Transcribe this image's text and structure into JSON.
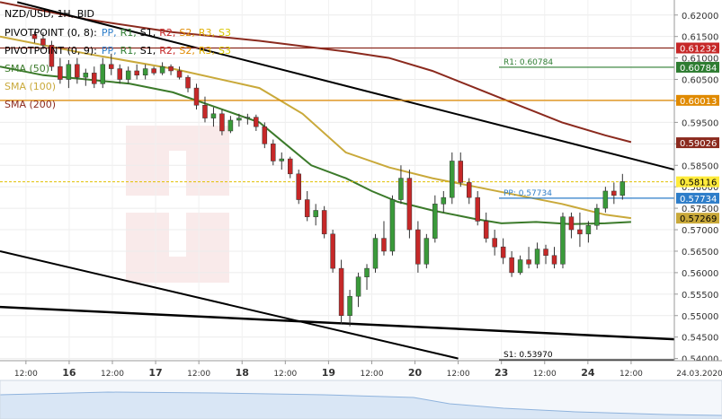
{
  "chart_data": {
    "type": "candlestick",
    "symbol_title": "NZD/USD, 1H, BID",
    "legend": [
      {
        "name": "PIVOTPOINT (0, 8):",
        "items": [
          {
            "t": "PP,",
            "c": "#2d7dc9"
          },
          {
            "t": "R1,",
            "c": "#2e7d32"
          },
          {
            "t": "S1,",
            "c": "#000000"
          },
          {
            "t": "R2,",
            "c": "#c62828"
          },
          {
            "t": "S2,",
            "c": "#e08a00"
          },
          {
            "t": "R3,",
            "c": "#e0b000"
          },
          {
            "t": "S3",
            "c": "#d8c800"
          }
        ]
      },
      {
        "name": "PIVOTPOINT (0, 9):",
        "items": [
          {
            "t": "PP,",
            "c": "#2d7dc9"
          },
          {
            "t": "R1,",
            "c": "#2e7d32"
          },
          {
            "t": "S1,",
            "c": "#000000"
          },
          {
            "t": "R2,",
            "c": "#c62828"
          },
          {
            "t": "S2,",
            "c": "#e08a00"
          },
          {
            "t": "R3,",
            "c": "#e0b000"
          },
          {
            "t": "S3",
            "c": "#d8c800"
          }
        ]
      },
      {
        "name": "SMA (50)",
        "color": "#3b7a2a"
      },
      {
        "name": "SMA (100)",
        "color": "#c9a93a"
      },
      {
        "name": "SMA (200)",
        "color": "#8b2a1e"
      }
    ],
    "y_ticks": [
      "0.62000",
      "0.61500",
      "0.61000",
      "0.60500",
      "0.60000",
      "0.59500",
      "0.59000",
      "0.58500",
      "0.58000",
      "0.57500",
      "0.57000",
      "0.56500",
      "0.56000",
      "0.55500",
      "0.55000",
      "0.54500",
      "0.54000"
    ],
    "ylim": [
      0.5395,
      0.6235
    ],
    "x_ticks": [
      {
        "label": "12:00",
        "x": 3
      },
      {
        "label": "16",
        "x": 8
      },
      {
        "label": "12:00",
        "x": 13
      },
      {
        "label": "17",
        "x": 18
      },
      {
        "label": "12:00",
        "x": 23
      },
      {
        "label": "18",
        "x": 28
      },
      {
        "label": "12:00",
        "x": 33
      },
      {
        "label": "19",
        "x": 38
      },
      {
        "label": "12:00",
        "x": 43
      },
      {
        "label": "20",
        "x": 48
      },
      {
        "label": "12:00",
        "x": 53
      },
      {
        "label": "23",
        "x": 58
      },
      {
        "label": "12:00",
        "x": 63
      },
      {
        "label": "24",
        "x": 68
      },
      {
        "label": "12:00",
        "x": 73
      }
    ],
    "date_label": "24.03.2020",
    "xlim": [
      0,
      78
    ],
    "levels": [
      {
        "label": "R1: 0.60784",
        "value": 0.60784,
        "color": "#2e7d32",
        "badge": "0.60784",
        "badge_bg": "#2e7d32",
        "badge_fg": "#ffffff"
      },
      {
        "label": "PP: 0.57734",
        "value": 0.57734,
        "color": "#2d7dc9",
        "badge": "0.57734",
        "badge_bg": "#2d7dc9",
        "badge_fg": "#ffffff"
      },
      {
        "label": "S1: 0.53970",
        "value": 0.5397,
        "color": "#000000",
        "badge": "",
        "badge_bg": "#c62828",
        "badge_fg": "#ffffff"
      },
      {
        "label": "",
        "value": 0.61232,
        "color": "#8b2a1e",
        "badge": "0.61232",
        "badge_bg": "#c62828",
        "badge_fg": "#ffffff"
      },
      {
        "label": "",
        "value": 0.60013,
        "color": "#e08a00",
        "badge": "0.60013",
        "badge_bg": "#e08a00",
        "badge_fg": "#ffffff"
      }
    ],
    "price_badges": [
      {
        "value": 0.59026,
        "text": "0.59026",
        "bg": "#8b2a1e",
        "fg": "#ffffff"
      },
      {
        "value": 0.58116,
        "text": "0.58116",
        "bg": "#ffeb3b",
        "fg": "#000000"
      },
      {
        "value": 0.57269,
        "text": "0.57269",
        "bg": "#c9a93a",
        "fg": "#000000"
      }
    ],
    "current_price": 0.58116,
    "sma200": [
      [
        0,
        0.623
      ],
      [
        10,
        0.619
      ],
      [
        20,
        0.616
      ],
      [
        30,
        0.614
      ],
      [
        40,
        0.6115
      ],
      [
        45,
        0.61
      ],
      [
        50,
        0.607
      ],
      [
        55,
        0.603
      ],
      [
        60,
        0.599
      ],
      [
        65,
        0.595
      ],
      [
        70,
        0.592
      ],
      [
        73,
        0.5904
      ]
    ],
    "sma100": [
      [
        0,
        0.615
      ],
      [
        10,
        0.611
      ],
      [
        20,
        0.6075
      ],
      [
        30,
        0.603
      ],
      [
        35,
        0.597
      ],
      [
        40,
        0.588
      ],
      [
        45,
        0.5845
      ],
      [
        50,
        0.582
      ],
      [
        55,
        0.58
      ],
      [
        60,
        0.578
      ],
      [
        65,
        0.576
      ],
      [
        70,
        0.5735
      ],
      [
        73,
        0.5727
      ]
    ],
    "sma50": [
      [
        0,
        0.608
      ],
      [
        5,
        0.606
      ],
      [
        10,
        0.605
      ],
      [
        15,
        0.604
      ],
      [
        20,
        0.602
      ],
      [
        25,
        0.5985
      ],
      [
        30,
        0.595
      ],
      [
        33,
        0.59
      ],
      [
        36,
        0.585
      ],
      [
        40,
        0.582
      ],
      [
        43,
        0.579
      ],
      [
        46,
        0.5765
      ],
      [
        50,
        0.5745
      ],
      [
        55,
        0.5725
      ],
      [
        58,
        0.5715
      ],
      [
        62,
        0.5718
      ],
      [
        66,
        0.5713
      ],
      [
        70,
        0.5715
      ],
      [
        73,
        0.5718
      ]
    ],
    "candles": [
      [
        0.6155,
        0.6162,
        0.6135,
        0.6145
      ],
      [
        0.6145,
        0.616,
        0.612,
        0.613
      ],
      [
        0.613,
        0.614,
        0.607,
        0.608
      ],
      [
        0.608,
        0.61,
        0.604,
        0.605
      ],
      [
        0.605,
        0.6095,
        0.603,
        0.6085
      ],
      [
        0.6085,
        0.61,
        0.604,
        0.6055
      ],
      [
        0.6055,
        0.6075,
        0.6035,
        0.6065
      ],
      [
        0.6065,
        0.608,
        0.603,
        0.604
      ],
      [
        0.604,
        0.61,
        0.603,
        0.6085
      ],
      [
        0.6085,
        0.611,
        0.606,
        0.6075
      ],
      [
        0.6075,
        0.6085,
        0.604,
        0.605
      ],
      [
        0.605,
        0.608,
        0.604,
        0.607
      ],
      [
        0.607,
        0.6085,
        0.605,
        0.606
      ],
      [
        0.606,
        0.6085,
        0.605,
        0.6075
      ],
      [
        0.6075,
        0.608,
        0.606,
        0.6065
      ],
      [
        0.6065,
        0.609,
        0.606,
        0.608
      ],
      [
        0.608,
        0.6085,
        0.606,
        0.607
      ],
      [
        0.607,
        0.608,
        0.605,
        0.6055
      ],
      [
        0.6055,
        0.606,
        0.602,
        0.603
      ],
      [
        0.603,
        0.604,
        0.598,
        0.599
      ],
      [
        0.599,
        0.601,
        0.595,
        0.596
      ],
      [
        0.596,
        0.5985,
        0.594,
        0.597
      ],
      [
        0.597,
        0.598,
        0.592,
        0.593
      ],
      [
        0.593,
        0.5965,
        0.5925,
        0.5955
      ],
      [
        0.5955,
        0.597,
        0.594,
        0.596
      ],
      [
        0.596,
        0.597,
        0.5945,
        0.5962
      ],
      [
        0.5962,
        0.5968,
        0.593,
        0.594
      ],
      [
        0.594,
        0.595,
        0.589,
        0.59
      ],
      [
        0.59,
        0.591,
        0.585,
        0.586
      ],
      [
        0.586,
        0.588,
        0.584,
        0.5865
      ],
      [
        0.5865,
        0.587,
        0.582,
        0.583
      ],
      [
        0.583,
        0.584,
        0.576,
        0.577
      ],
      [
        0.577,
        0.579,
        0.572,
        0.573
      ],
      [
        0.573,
        0.576,
        0.571,
        0.5745
      ],
      [
        0.5745,
        0.5755,
        0.568,
        0.569
      ],
      [
        0.569,
        0.57,
        0.56,
        0.561
      ],
      [
        0.561,
        0.563,
        0.548,
        0.55
      ],
      [
        0.55,
        0.556,
        0.5475,
        0.5545
      ],
      [
        0.5545,
        0.56,
        0.552,
        0.559
      ],
      [
        0.559,
        0.562,
        0.556,
        0.561
      ],
      [
        0.561,
        0.569,
        0.56,
        0.568
      ],
      [
        0.568,
        0.572,
        0.564,
        0.565
      ],
      [
        0.565,
        0.578,
        0.564,
        0.577
      ],
      [
        0.577,
        0.585,
        0.576,
        0.582
      ],
      [
        0.582,
        0.584,
        0.568,
        0.57
      ],
      [
        0.57,
        0.572,
        0.56,
        0.562
      ],
      [
        0.562,
        0.569,
        0.561,
        0.568
      ],
      [
        0.568,
        0.578,
        0.567,
        0.576
      ],
      [
        0.576,
        0.579,
        0.574,
        0.5775
      ],
      [
        0.5775,
        0.588,
        0.576,
        0.586
      ],
      [
        0.586,
        0.588,
        0.58,
        0.581
      ],
      [
        0.581,
        0.582,
        0.576,
        0.5775
      ],
      [
        0.5775,
        0.579,
        0.571,
        0.572
      ],
      [
        0.572,
        0.574,
        0.567,
        0.568
      ],
      [
        0.568,
        0.57,
        0.564,
        0.566
      ],
      [
        0.566,
        0.568,
        0.562,
        0.5635
      ],
      [
        0.5635,
        0.565,
        0.559,
        0.56
      ],
      [
        0.56,
        0.564,
        0.5595,
        0.563
      ],
      [
        0.563,
        0.566,
        0.561,
        0.562
      ],
      [
        0.562,
        0.567,
        0.561,
        0.5655
      ],
      [
        0.5655,
        0.5665,
        0.562,
        0.564
      ],
      [
        0.564,
        0.566,
        0.561,
        0.562
      ],
      [
        0.562,
        0.574,
        0.561,
        0.573
      ],
      [
        0.573,
        0.574,
        0.568,
        0.57
      ],
      [
        0.57,
        0.574,
        0.566,
        0.569
      ],
      [
        0.569,
        0.572,
        0.567,
        0.571
      ],
      [
        0.571,
        0.576,
        0.57,
        0.575
      ],
      [
        0.575,
        0.58,
        0.574,
        0.579
      ],
      [
        0.579,
        0.581,
        0.576,
        0.578
      ],
      [
        0.578,
        0.583,
        0.577,
        0.5812
      ]
    ],
    "trendlines": [
      [
        [
          2,
          0.623
        ],
        [
          78,
          0.584
        ]
      ],
      [
        [
          0,
          0.565
        ],
        [
          53,
          0.54
        ]
      ],
      [
        [
          0,
          0.552
        ],
        [
          78,
          0.5445
        ]
      ]
    ]
  }
}
